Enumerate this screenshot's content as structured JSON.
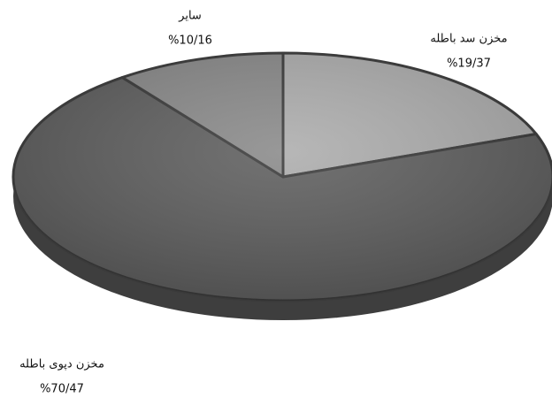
{
  "chart_data": {
    "type": "pie",
    "categories": [
      "مخزن سد باطله",
      "مخزن دپوی باطله",
      "ساير"
    ],
    "values": [
      19.37,
      70.47,
      10.16
    ],
    "value_labels": [
      "%19/37",
      "%70/47",
      "%10/16"
    ],
    "colors": [
      "#adadad",
      "#5f5f5f",
      "#8a8a8a"
    ]
  }
}
